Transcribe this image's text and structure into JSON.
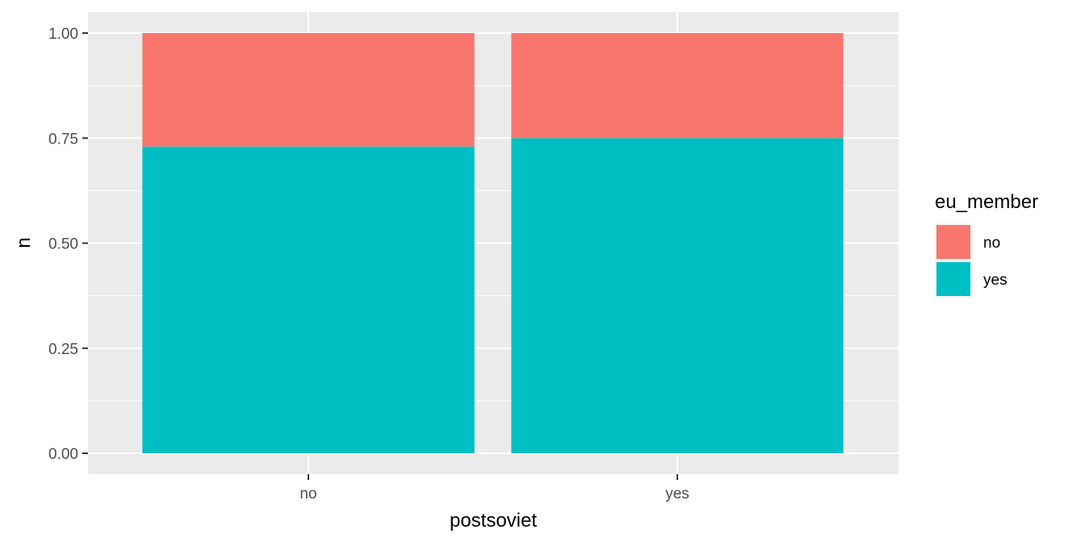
{
  "chart_data": {
    "type": "bar",
    "stacked": true,
    "categories": [
      "no",
      "yes"
    ],
    "series": [
      {
        "name": "no",
        "color": "#F8766D",
        "values": [
          0.27,
          0.25
        ]
      },
      {
        "name": "yes",
        "color": "#00BFC4",
        "values": [
          0.73,
          0.75
        ]
      }
    ],
    "xlabel": "postsoviet",
    "ylabel": "n",
    "ylim": [
      0,
      1
    ],
    "yticks": [
      "0.00",
      "0.25",
      "0.50",
      "0.75",
      "1.00"
    ],
    "ytick_values": [
      0,
      0.25,
      0.5,
      0.75,
      1.0
    ],
    "legend": {
      "title": "eu_member",
      "placement": "right"
    },
    "grid": true,
    "panel_background": "#EBEBEB"
  }
}
